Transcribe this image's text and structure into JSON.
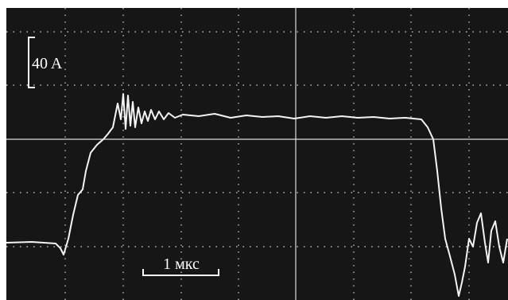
{
  "current_scale": "40 A",
  "time_scale": "1 мкс"
}
